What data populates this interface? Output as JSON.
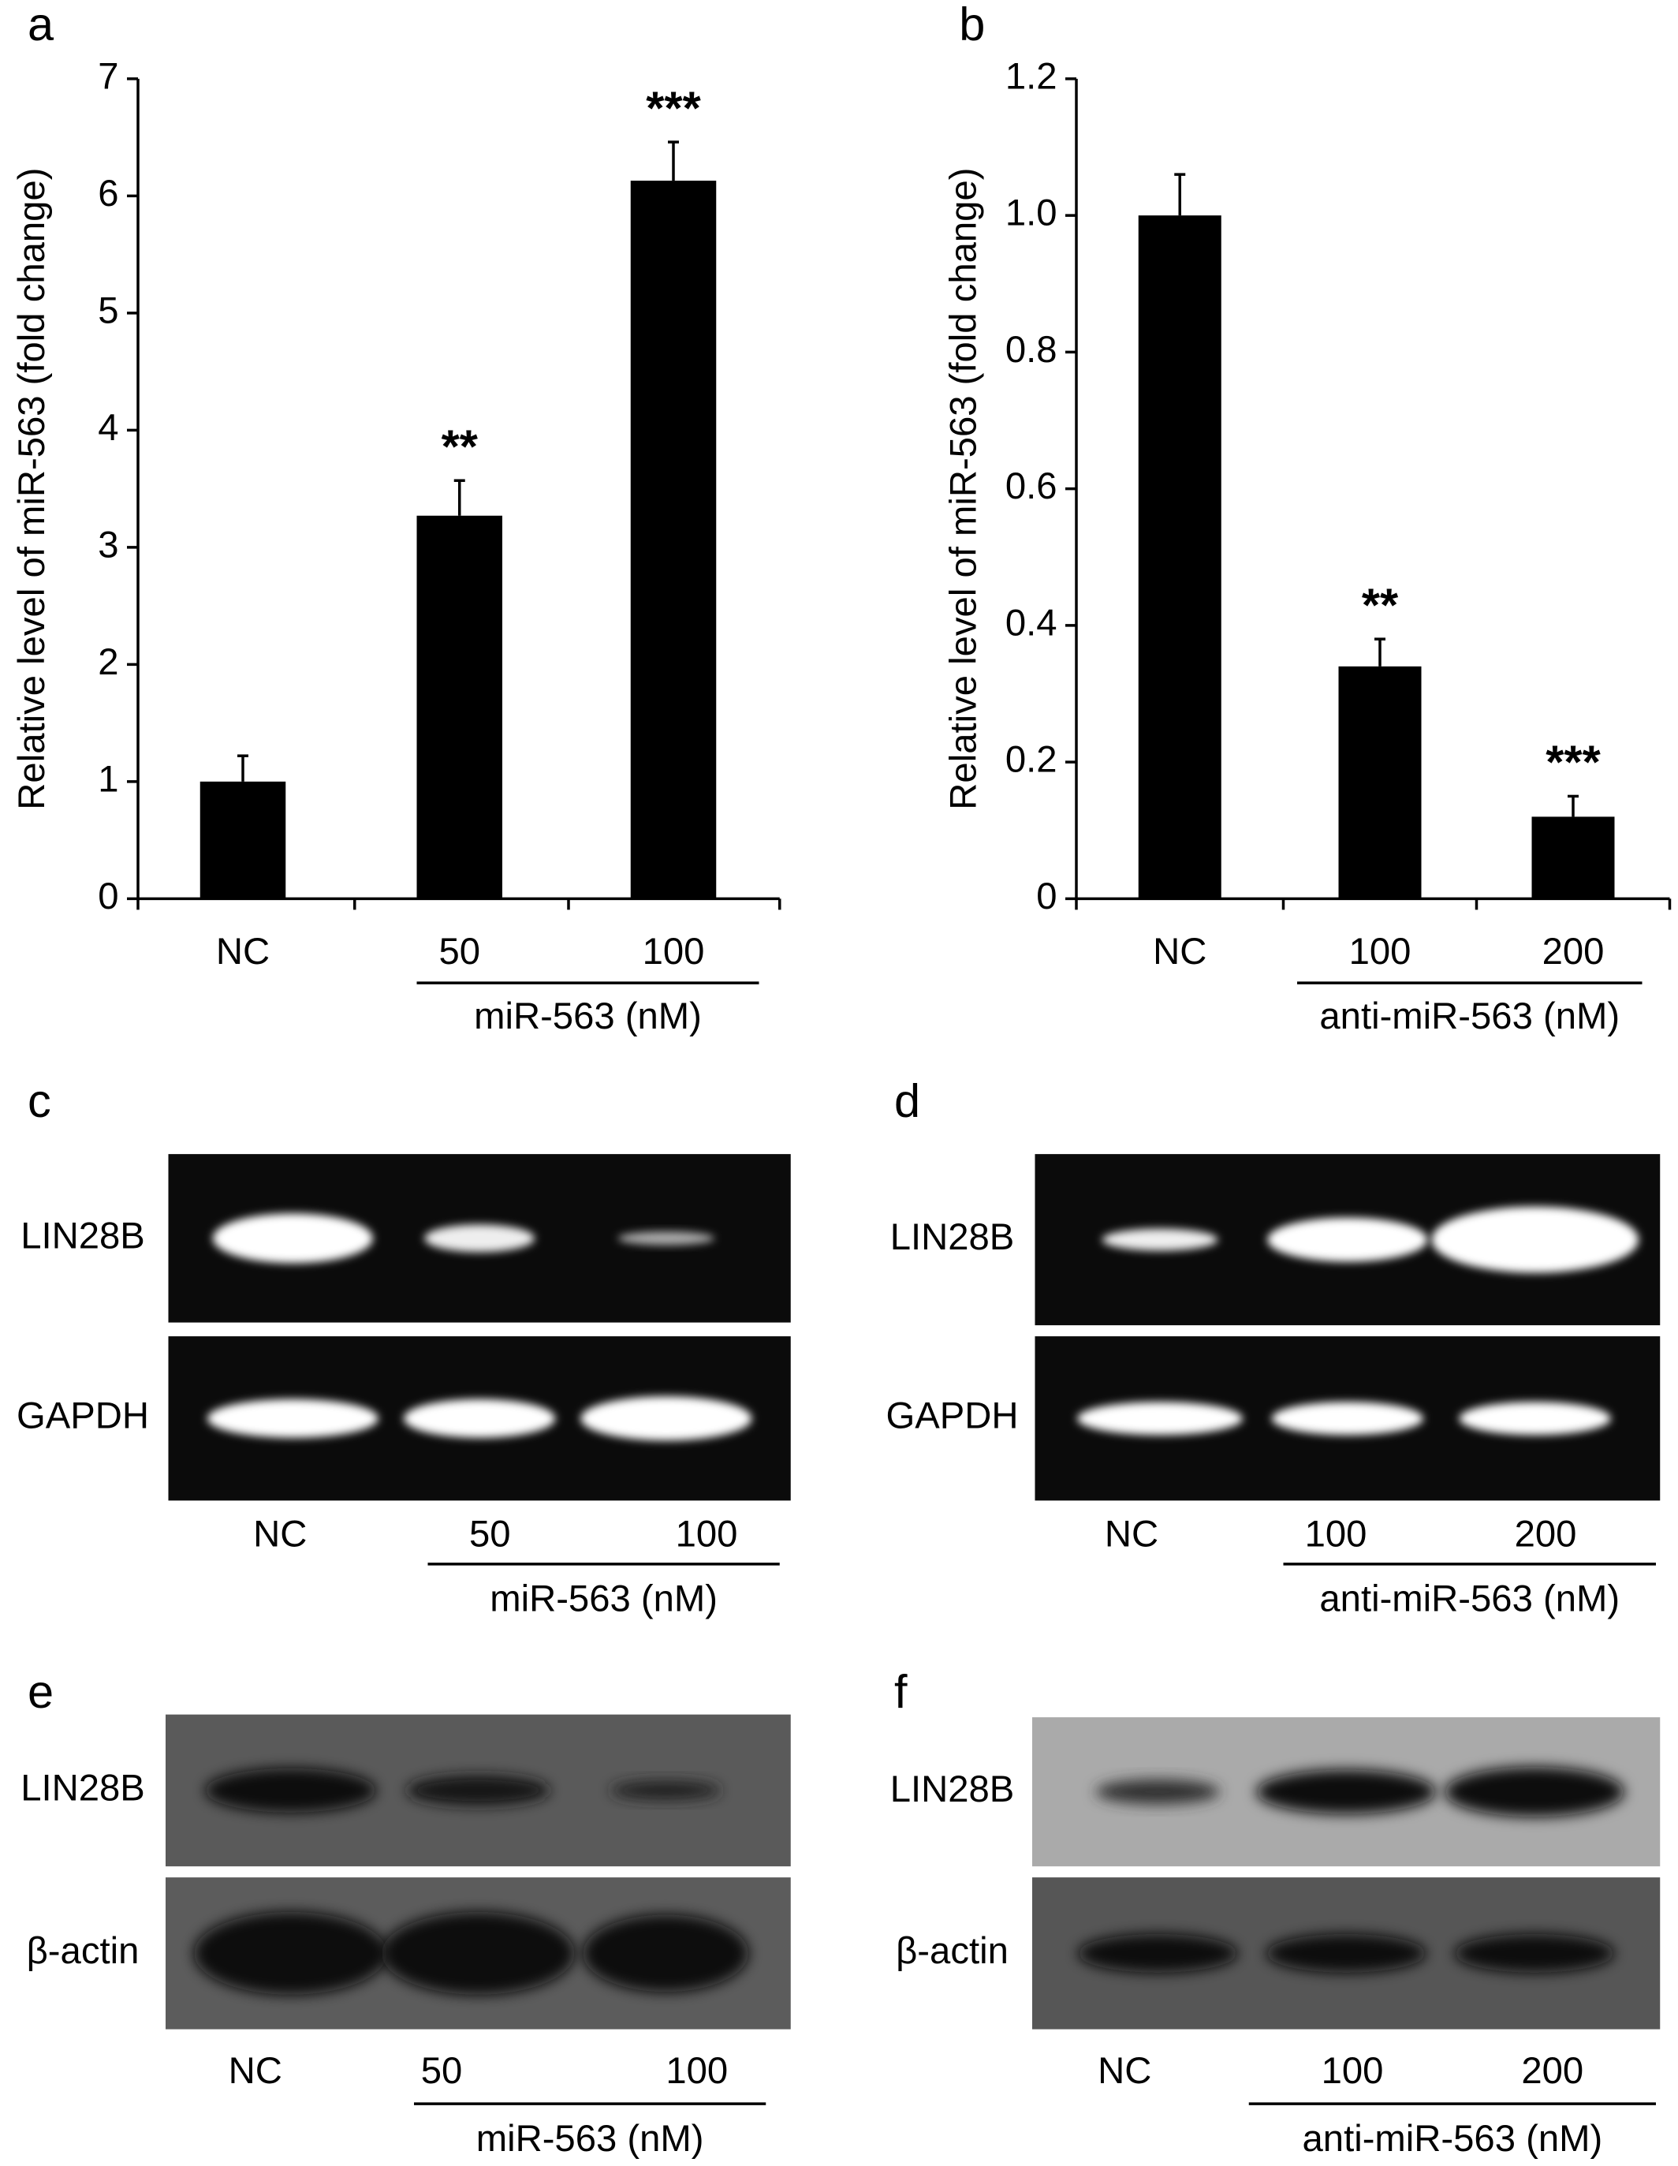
{
  "chart_data": [
    {
      "type": "bar",
      "letter": "a",
      "ylabel": "Relative level of miR-563 (fold change)",
      "categories": [
        "NC",
        "50",
        "100"
      ],
      "values": [
        1.0,
        3.27,
        6.13
      ],
      "errors": [
        0.22,
        0.3,
        0.33
      ],
      "significance": [
        null,
        "**",
        "***"
      ],
      "group_label": "miR-563 (nM)",
      "color": "#000000",
      "ylim": [
        0,
        7
      ],
      "yticks": [
        0,
        1,
        2,
        3,
        4,
        5,
        6,
        7
      ]
    },
    {
      "type": "bar",
      "letter": "b",
      "ylabel": "Relative level of miR-563 (fold change)",
      "categories": [
        "NC",
        "100",
        "200"
      ],
      "values": [
        1.0,
        0.34,
        0.12
      ],
      "errors": [
        0.06,
        0.04,
        0.03
      ],
      "significance": [
        null,
        "**",
        "***"
      ],
      "group_label": "anti-miR-563 (nM)",
      "color": "#000000",
      "ylim": [
        0,
        1.2
      ],
      "yticks": [
        0,
        0.2,
        0.4,
        0.6,
        0.8,
        {
          "value": 1,
          "label": "1.0"
        },
        1.2
      ]
    }
  ],
  "blots": [
    {
      "letter": "c",
      "rows": [
        "LIN28B",
        "GAPDH"
      ],
      "lanes": [
        "NC",
        "50",
        "100"
      ],
      "group_label": "miR-563 (nM)"
    },
    {
      "letter": "d",
      "rows": [
        "LIN28B",
        "GAPDH"
      ],
      "lanes": [
        "NC",
        "100",
        "200"
      ],
      "group_label": "anti-miR-563 (nM)"
    },
    {
      "letter": "e",
      "rows": [
        "LIN28B",
        "β-actin"
      ],
      "lanes": [
        "NC",
        "50",
        "100"
      ],
      "group_label": "miR-563 (nM)"
    },
    {
      "letter": "f",
      "rows": [
        "LIN28B",
        "β-actin"
      ],
      "lanes": [
        "NC",
        "100",
        "200"
      ],
      "group_label": "anti-miR-563 (nM)"
    }
  ]
}
